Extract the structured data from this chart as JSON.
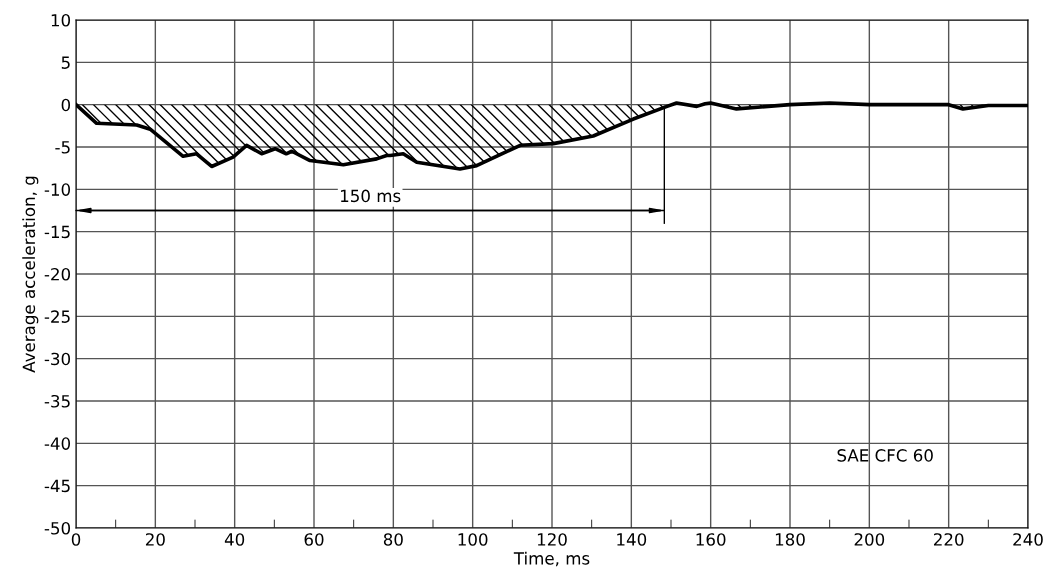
{
  "chart_data": {
    "type": "area",
    "xlabel": "Time, ms",
    "ylabel": "Average acceleration, g",
    "x": [
      0,
      5.2,
      15.3,
      18.7,
      27,
      30.4,
      34.2,
      39.6,
      43,
      46.8,
      50.2,
      53,
      54.4,
      59,
      67.4,
      75.8,
      78.3,
      79.2,
      82.5,
      85.9,
      96.8,
      101,
      112,
      120.3,
      130.4,
      140.5,
      149,
      151.4,
      156.5,
      158.6,
      160,
      166.5,
      180,
      190,
      200,
      220,
      223.6,
      230,
      240
    ],
    "series": [
      {
        "color": "#000000",
        "values": [
          0,
          -2.2,
          -2.4,
          -2.9,
          -6.1,
          -5.8,
          -7.3,
          -6.2,
          -4.8,
          -5.8,
          -5.2,
          -5.8,
          -5.5,
          -6.6,
          -7.1,
          -6.4,
          -6.0,
          -6.0,
          -5.8,
          -6.8,
          -7.6,
          -7.2,
          -4.8,
          -4.6,
          -3.7,
          -1.7,
          -0.2,
          0.2,
          -0.2,
          0.1,
          0.2,
          -0.5,
          0,
          0.2,
          0,
          0,
          -0.5,
          -0.1,
          -0.1
        ]
      }
    ],
    "annotations": [
      "150 ms",
      "SAE CFC 60"
    ],
    "xlim": [
      0,
      240
    ],
    "xticks": [
      0,
      20,
      40,
      60,
      80,
      100,
      120,
      140,
      160,
      180,
      200,
      220,
      240
    ],
    "ylim": [
      -50,
      10
    ],
    "yticks": [
      -50,
      -45,
      -40,
      -35,
      -30,
      -25,
      -20,
      -15,
      -10,
      -5,
      0,
      5,
      10
    ],
    "grid": true,
    "legend": false
  }
}
